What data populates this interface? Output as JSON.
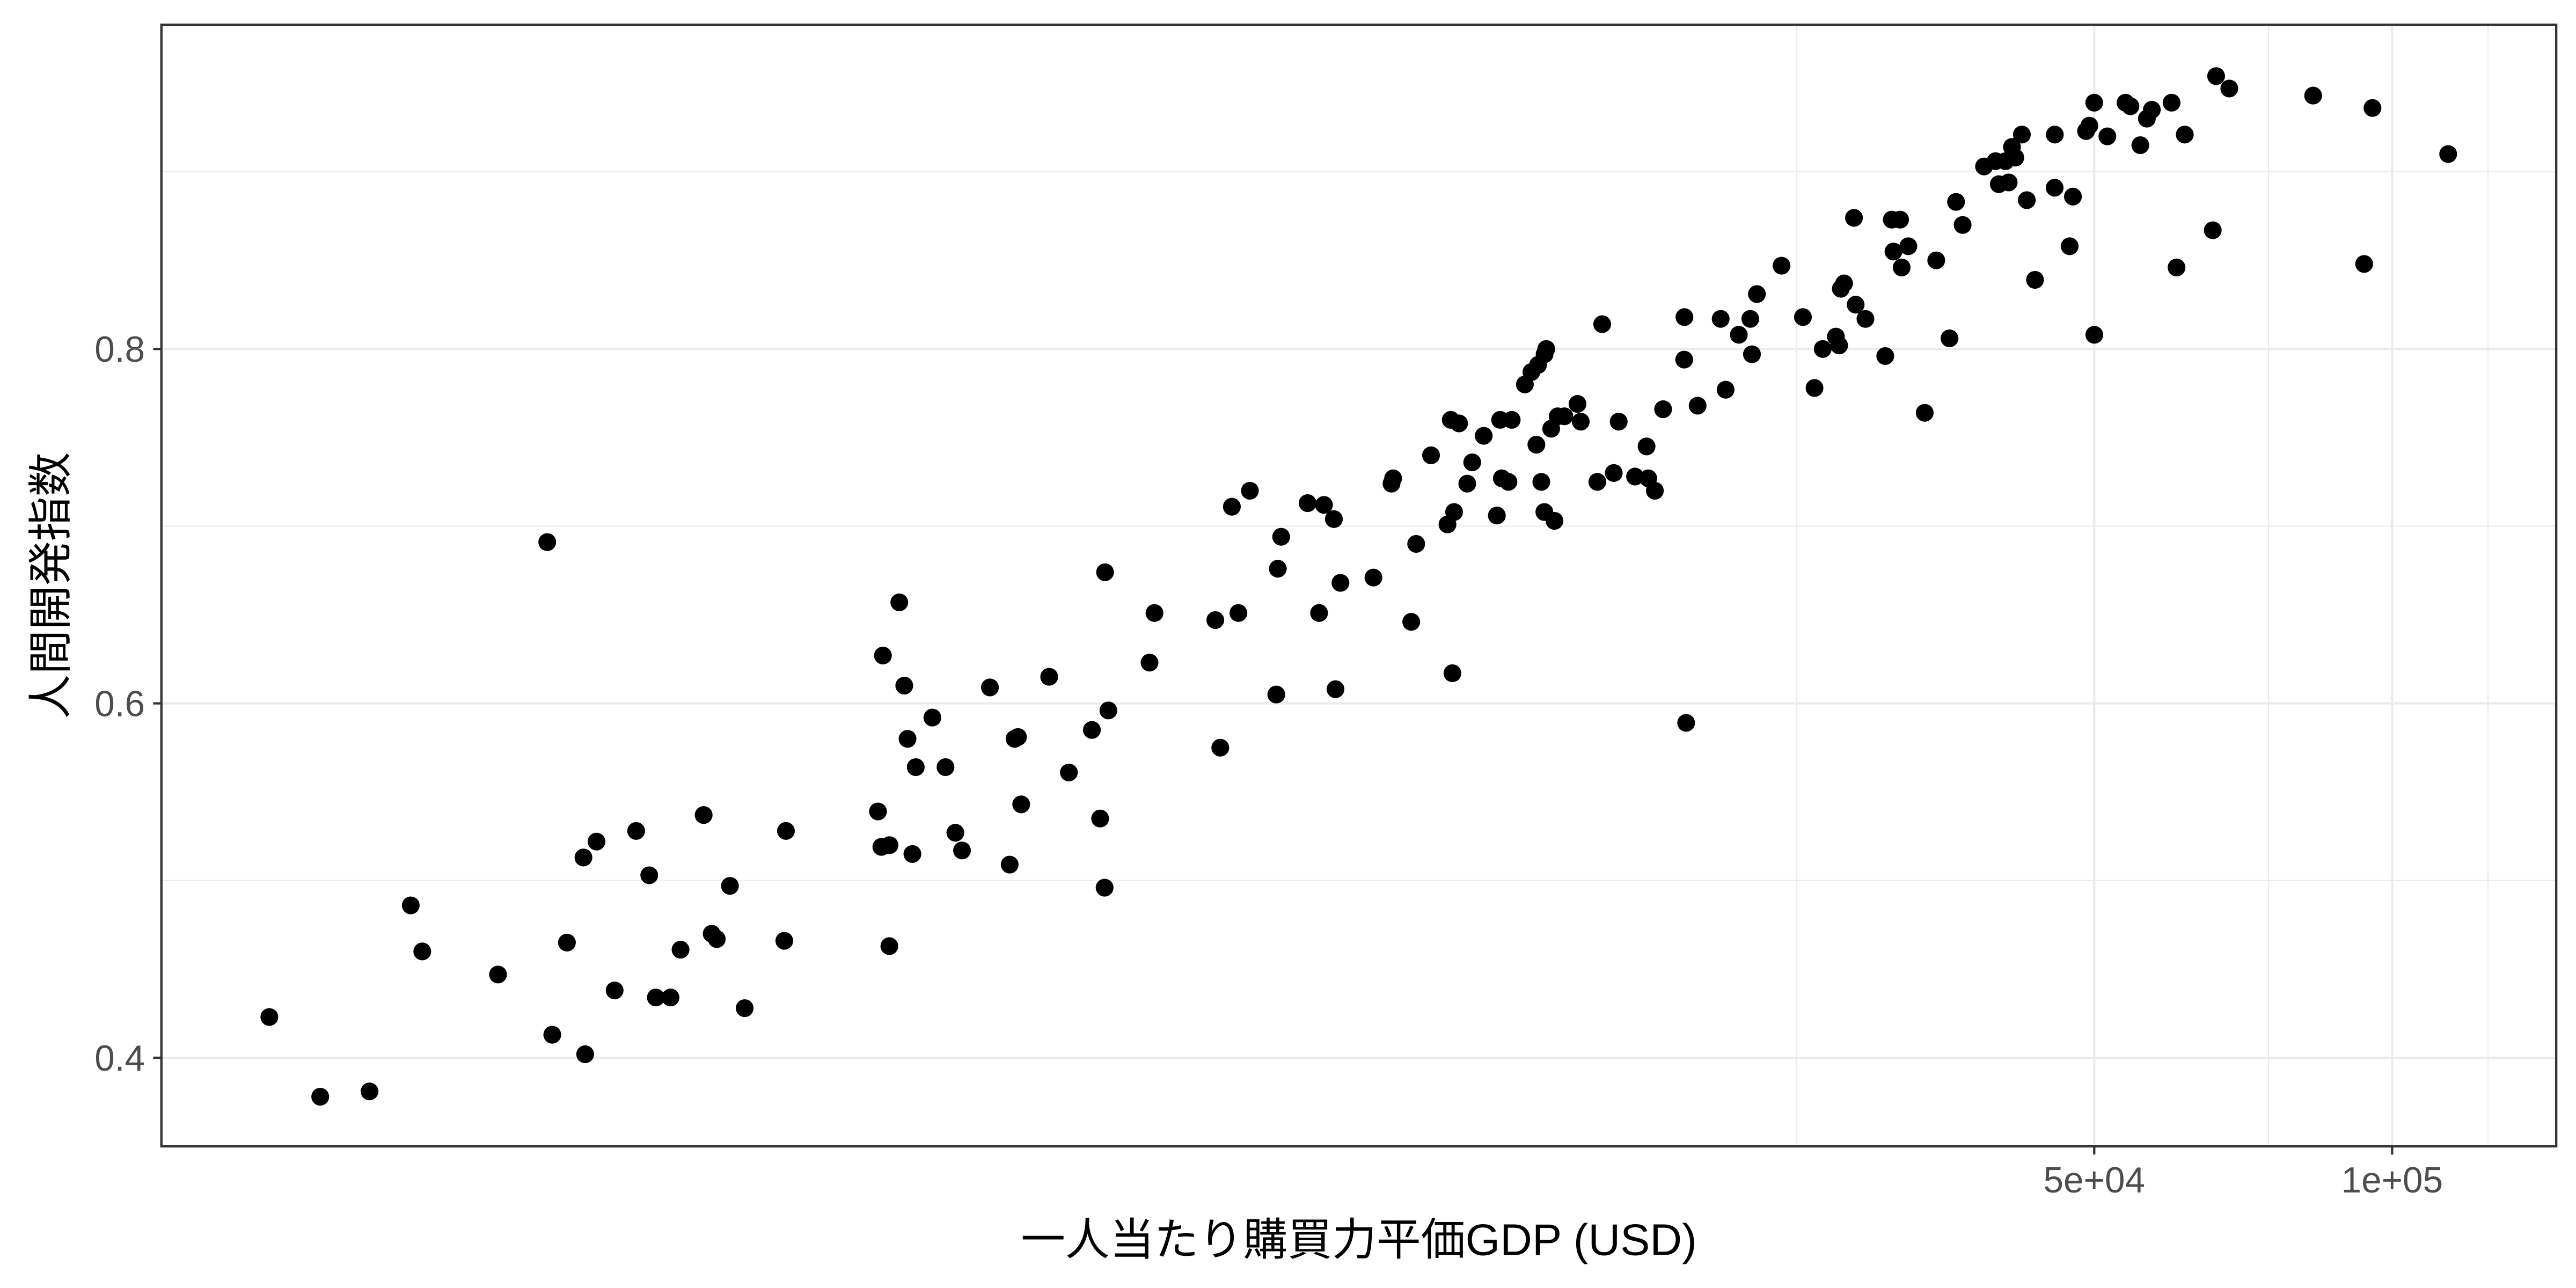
{
  "chart_data": {
    "type": "scatter",
    "xlabel": "一人当たり購買力平価GDP (USD)",
    "ylabel": "人間開発指数",
    "x_scale": "log",
    "y_scale": "linear",
    "xlim": [
      557,
      146500
    ],
    "ylim": [
      0.35,
      0.983
    ],
    "x_ticks": [
      {
        "value": 50000,
        "label": "5e+04"
      },
      {
        "value": 100000,
        "label": "1e+05"
      }
    ],
    "x_minor_gridlines": [
      25000,
      75000,
      125000
    ],
    "y_ticks": [
      {
        "value": 0.4,
        "label": "0.4"
      },
      {
        "value": 0.6,
        "label": "0.6"
      },
      {
        "value": 0.8,
        "label": "0.8"
      }
    ],
    "y_minor_gridlines": [
      0.5,
      0.7,
      0.9
    ],
    "grid": true,
    "legend": "none",
    "colors": {
      "points": "#000000",
      "grid": "#ebebeb",
      "panel_border": "#333333",
      "ticks": "#333333",
      "tick_labels": "#4d4d4d",
      "background": "#ffffff"
    },
    "series": [
      {
        "points": [
          [
            716,
            0.423
          ],
          [
            806,
            0.378
          ],
          [
            904,
            0.381
          ],
          [
            995,
            0.486
          ],
          [
            1022,
            0.46
          ],
          [
            1219,
            0.447
          ],
          [
            1367,
            0.691
          ],
          [
            1383,
            0.413
          ],
          [
            1431,
            0.465
          ],
          [
            1487,
            0.513
          ],
          [
            1493,
            0.402
          ],
          [
            1533,
            0.522
          ],
          [
            1599,
            0.438
          ],
          [
            1681,
            0.528
          ],
          [
            1733,
            0.503
          ],
          [
            1760,
            0.434
          ],
          [
            1821,
            0.434
          ],
          [
            1864,
            0.461
          ],
          [
            1967,
            0.537
          ],
          [
            2004,
            0.47
          ],
          [
            2028,
            0.467
          ],
          [
            2091,
            0.497
          ],
          [
            2164,
            0.428
          ],
          [
            2373,
            0.466
          ],
          [
            2382,
            0.528
          ],
          [
            2951,
            0.539
          ],
          [
            2974,
            0.519
          ],
          [
            2985,
            0.627
          ],
          [
            3031,
            0.52
          ],
          [
            3030,
            0.463
          ],
          [
            3101,
            0.657
          ],
          [
            3137,
            0.61
          ],
          [
            3161,
            0.58
          ],
          [
            3197,
            0.515
          ],
          [
            3222,
            0.564
          ],
          [
            3349,
            0.592
          ],
          [
            3453,
            0.564
          ],
          [
            3533,
            0.527
          ],
          [
            3588,
            0.517
          ],
          [
            3829,
            0.609
          ],
          [
            4009,
            0.509
          ],
          [
            4055,
            0.58
          ],
          [
            4087,
            0.581
          ],
          [
            4118,
            0.543
          ],
          [
            4395,
            0.615
          ],
          [
            4601,
            0.561
          ],
          [
            4854,
            0.585
          ],
          [
            4948,
            0.535
          ],
          [
            5005,
            0.674
          ],
          [
            5000,
            0.496
          ],
          [
            5044,
            0.596
          ],
          [
            5551,
            0.623
          ],
          [
            5615,
            0.651
          ],
          [
            6469,
            0.647
          ],
          [
            6544,
            0.575
          ],
          [
            6723,
            0.711
          ],
          [
            6826,
            0.651
          ],
          [
            7011,
            0.72
          ],
          [
            7455,
            0.605
          ],
          [
            7482,
            0.676
          ],
          [
            7540,
            0.694
          ],
          [
            8018,
            0.713
          ],
          [
            8235,
            0.651
          ],
          [
            8330,
            0.712
          ],
          [
            8524,
            0.704
          ],
          [
            8556,
            0.608
          ],
          [
            8655,
            0.668
          ],
          [
            9346,
            0.671
          ],
          [
            9747,
            0.724
          ],
          [
            9784,
            0.727
          ],
          [
            10205,
            0.646
          ],
          [
            10323,
            0.69
          ],
          [
            10686,
            0.74
          ],
          [
            11103,
            0.701
          ],
          [
            11188,
            0.76
          ],
          [
            11231,
            0.617
          ],
          [
            11275,
            0.708
          ],
          [
            11406,
            0.758
          ],
          [
            11626,
            0.724
          ],
          [
            11761,
            0.736
          ],
          [
            12079,
            0.751
          ],
          [
            12455,
            0.706
          ],
          [
            12550,
            0.76
          ],
          [
            12599,
            0.727
          ],
          [
            12795,
            0.725
          ],
          [
            12893,
            0.76
          ],
          [
            13294,
            0.78
          ],
          [
            13498,
            0.787
          ],
          [
            13654,
            0.746
          ],
          [
            13707,
            0.791
          ],
          [
            13812,
            0.725
          ],
          [
            13917,
            0.797
          ],
          [
            13910,
            0.708
          ],
          [
            13972,
            0.8
          ],
          [
            14133,
            0.755
          ],
          [
            14241,
            0.703
          ],
          [
            14350,
            0.762
          ],
          [
            14573,
            0.762
          ],
          [
            15026,
            0.769
          ],
          [
            15140,
            0.759
          ],
          [
            15735,
            0.725
          ],
          [
            15914,
            0.814
          ],
          [
            16348,
            0.73
          ],
          [
            16537,
            0.759
          ],
          [
            17179,
            0.728
          ],
          [
            17645,
            0.745
          ],
          [
            17714,
            0.727
          ],
          [
            17989,
            0.72
          ],
          [
            18337,
            0.766
          ],
          [
            19270,
            0.818
          ],
          [
            19260,
            0.794
          ],
          [
            19346,
            0.589
          ],
          [
            19870,
            0.768
          ],
          [
            20965,
            0.817
          ],
          [
            21208,
            0.777
          ],
          [
            21868,
            0.808
          ],
          [
            22460,
            0.817
          ],
          [
            22548,
            0.797
          ],
          [
            22809,
            0.831
          ],
          [
            24155,
            0.847
          ],
          [
            25387,
            0.818
          ],
          [
            26080,
            0.778
          ],
          [
            26583,
            0.8
          ],
          [
            27410,
            0.807
          ],
          [
            27619,
            0.802
          ],
          [
            27727,
            0.834
          ],
          [
            27938,
            0.837
          ],
          [
            28589,
            0.874
          ],
          [
            28701,
            0.825
          ],
          [
            29363,
            0.817
          ],
          [
            30747,
            0.796
          ],
          [
            31218,
            0.873
          ],
          [
            31340,
            0.855
          ],
          [
            31828,
            0.873
          ],
          [
            31945,
            0.846
          ],
          [
            32442,
            0.858
          ],
          [
            33705,
            0.764
          ],
          [
            34619,
            0.85
          ],
          [
            35705,
            0.806
          ],
          [
            36253,
            0.883
          ],
          [
            36813,
            0.87
          ],
          [
            38694,
            0.903
          ],
          [
            39741,
            0.906
          ],
          [
            40045,
            0.893
          ],
          [
            40667,
            0.906
          ],
          [
            40977,
            0.894
          ],
          [
            41290,
            0.914
          ],
          [
            41614,
            0.908
          ],
          [
            42253,
            0.921
          ],
          [
            42742,
            0.884
          ],
          [
            43567,
            0.839
          ],
          [
            45620,
            0.921
          ],
          [
            45600,
            0.891
          ],
          [
            47223,
            0.858
          ],
          [
            47583,
            0.886
          ],
          [
            49062,
            0.923
          ],
          [
            49436,
            0.926
          ],
          [
            50000,
            0.939
          ],
          [
            50010,
            0.808
          ],
          [
            51552,
            0.92
          ],
          [
            53774,
            0.939
          ],
          [
            54396,
            0.937
          ],
          [
            55662,
            0.915
          ],
          [
            56515,
            0.93
          ],
          [
            57170,
            0.935
          ],
          [
            59864,
            0.939
          ],
          [
            60557,
            0.846
          ],
          [
            61727,
            0.921
          ],
          [
            65878,
            0.867
          ],
          [
            66396,
            0.954
          ],
          [
            68462,
            0.947
          ],
          [
            83215,
            0.943
          ],
          [
            93699,
            0.848
          ],
          [
            95530,
            0.936
          ],
          [
            113930,
            0.91
          ]
        ]
      }
    ]
  }
}
